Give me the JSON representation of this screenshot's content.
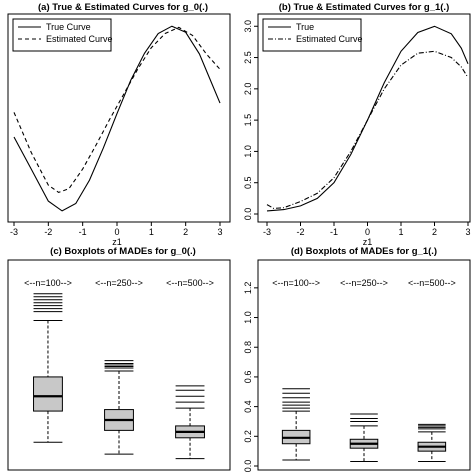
{
  "chart_data": [
    {
      "type": "line",
      "title": "(a) True & Estimated Curves for g_0(.)",
      "xlabel": "z1",
      "ylabel": "",
      "xlim": [
        -3,
        3
      ],
      "ylim": [
        -0.05,
        3.1
      ],
      "x_ticks": [
        -3,
        -2,
        -1,
        0,
        1,
        2,
        3
      ],
      "y_ticks": [],
      "legend": {
        "placement": "top-left",
        "entries": [
          "True Curve",
          "Estimated Curve"
        ]
      },
      "series": [
        {
          "name": "True Curve",
          "style": "solid",
          "x": [
            -3,
            -2.5,
            -2,
            -1.6,
            -1.2,
            -0.8,
            -0.4,
            0,
            0.4,
            0.8,
            1.2,
            1.6,
            2,
            2.4,
            2.7,
            3
          ],
          "y": [
            1.2,
            0.68,
            0.16,
            0.0,
            0.12,
            0.5,
            1.02,
            1.58,
            2.12,
            2.56,
            2.88,
            3.0,
            2.9,
            2.55,
            2.15,
            1.75
          ]
        },
        {
          "name": "Estimated Curve",
          "style": "dashed",
          "x": [
            -3,
            -2.5,
            -2,
            -1.7,
            -1.4,
            -1.0,
            -0.6,
            -0.2,
            0.2,
            0.6,
            1.0,
            1.4,
            1.8,
            2.2,
            2.6,
            3
          ],
          "y": [
            1.6,
            0.95,
            0.42,
            0.3,
            0.36,
            0.68,
            1.08,
            1.5,
            1.9,
            2.3,
            2.65,
            2.88,
            2.98,
            2.85,
            2.55,
            2.3
          ]
        }
      ]
    },
    {
      "type": "line",
      "title": "(b) True & Estimated Curves for g_1(.)",
      "xlabel": "z1",
      "ylabel": "",
      "xlim": [
        -3,
        3
      ],
      "ylim": [
        0,
        3.1
      ],
      "x_ticks": [
        -3,
        -2,
        -1,
        0,
        1,
        2,
        3
      ],
      "y_ticks": [
        0.0,
        0.5,
        1.0,
        1.5,
        2.0,
        2.5,
        3.0
      ],
      "legend": {
        "placement": "top-left",
        "entries": [
          "True",
          "Estimated Curve"
        ]
      },
      "series": [
        {
          "name": "True",
          "style": "solid",
          "x": [
            -3,
            -2.5,
            -2,
            -1.5,
            -1,
            -0.5,
            0,
            0.5,
            1,
            1.5,
            2,
            2.5,
            2.8,
            3
          ],
          "y": [
            0.05,
            0.07,
            0.13,
            0.25,
            0.5,
            0.95,
            1.5,
            2.1,
            2.6,
            2.9,
            3.0,
            2.88,
            2.65,
            2.4
          ]
        },
        {
          "name": "Estimated Curve",
          "style": "dashdot",
          "x": [
            -3,
            -2.8,
            -2.5,
            -2,
            -1.5,
            -1,
            -0.5,
            0,
            0.5,
            1,
            1.5,
            2,
            2.5,
            2.8,
            3
          ],
          "y": [
            0.15,
            0.09,
            0.1,
            0.2,
            0.33,
            0.58,
            1.0,
            1.5,
            2.0,
            2.38,
            2.57,
            2.6,
            2.5,
            2.35,
            2.18
          ]
        }
      ]
    },
    {
      "type": "boxplot",
      "title": "(c) Boxplots of MADEs for g_0(.)",
      "xlabel": "",
      "ylabel": "",
      "ylim": [
        0,
        1.3
      ],
      "y_ticks": [],
      "annotations": [
        "<--n=100-->",
        "<--n=250-->",
        "<--n=500-->"
      ],
      "boxes": [
        {
          "group": "n=100",
          "min": 0.16,
          "q1": 0.37,
          "median": 0.47,
          "q3": 0.6,
          "whisker_high": 0.98,
          "outliers": [
            1.04,
            1.06,
            1.08,
            1.1,
            1.12,
            1.14,
            1.16
          ]
        },
        {
          "group": "n=250",
          "min": 0.08,
          "q1": 0.24,
          "median": 0.31,
          "q3": 0.38,
          "whisker_high": 0.64,
          "outliers": [
            0.66,
            0.67,
            0.68,
            0.69,
            0.71
          ]
        },
        {
          "group": "n=500",
          "min": 0.05,
          "q1": 0.19,
          "median": 0.23,
          "q3": 0.27,
          "whisker_high": 0.39,
          "outliers": [
            0.43,
            0.47,
            0.51,
            0.54
          ]
        }
      ]
    },
    {
      "type": "boxplot",
      "title": "(d) Boxplots of MADEs for g_1(.)",
      "xlabel": "",
      "ylabel": "",
      "ylim": [
        0,
        1.3
      ],
      "y_ticks": [
        0.0,
        0.2,
        0.4,
        0.6,
        0.8,
        1.0,
        1.2
      ],
      "annotations": [
        "<--n=100-->",
        "<--n=250-->",
        "<--n=500-->"
      ],
      "boxes": [
        {
          "group": "n=100",
          "min": 0.04,
          "q1": 0.15,
          "median": 0.19,
          "q3": 0.24,
          "whisker_high": 0.37,
          "outliers": [
            0.39,
            0.41,
            0.43,
            0.46,
            0.49,
            0.52
          ]
        },
        {
          "group": "n=250",
          "min": 0.03,
          "q1": 0.12,
          "median": 0.15,
          "q3": 0.18,
          "whisker_high": 0.27,
          "outliers": [
            0.3,
            0.32,
            0.35
          ]
        },
        {
          "group": "n=500",
          "min": 0.03,
          "q1": 0.1,
          "median": 0.13,
          "q3": 0.16,
          "whisker_high": 0.23,
          "outliers": [
            0.25,
            0.26,
            0.27,
            0.28
          ]
        }
      ]
    }
  ]
}
